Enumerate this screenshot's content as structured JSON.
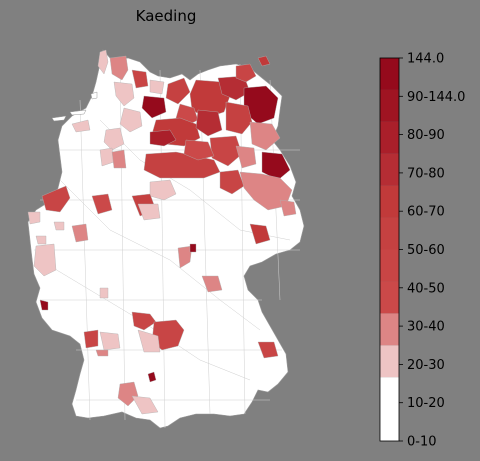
{
  "title": "Kaeding",
  "colors": {
    "background": "#808080",
    "empty_region": "#ffffff",
    "border": "#c8c8c8",
    "outline": "#000000"
  },
  "legend": {
    "labels": [
      "0-10",
      "10-20",
      "20-30",
      "30-40",
      "40-50",
      "50-60",
      "60-70",
      "70-80",
      "80-90",
      "90-144.0",
      "144.0"
    ],
    "steps": [
      {
        "color": "#ffffff",
        "weight": 2
      },
      {
        "color": "#eec4c4",
        "weight": 1
      },
      {
        "color": "#dd8585",
        "weight": 1
      },
      {
        "color": "#cb4949",
        "weight": 1
      },
      {
        "color": "#c84545",
        "weight": 1
      },
      {
        "color": "#c54141",
        "weight": 1
      },
      {
        "color": "#c13a3a",
        "weight": 1
      },
      {
        "color": "#b52d34",
        "weight": 1
      },
      {
        "color": "#aa1f2a",
        "weight": 1
      },
      {
        "color": "#9f1422",
        "weight": 1
      },
      {
        "color": "#950a1c",
        "weight": 1
      }
    ]
  }
}
